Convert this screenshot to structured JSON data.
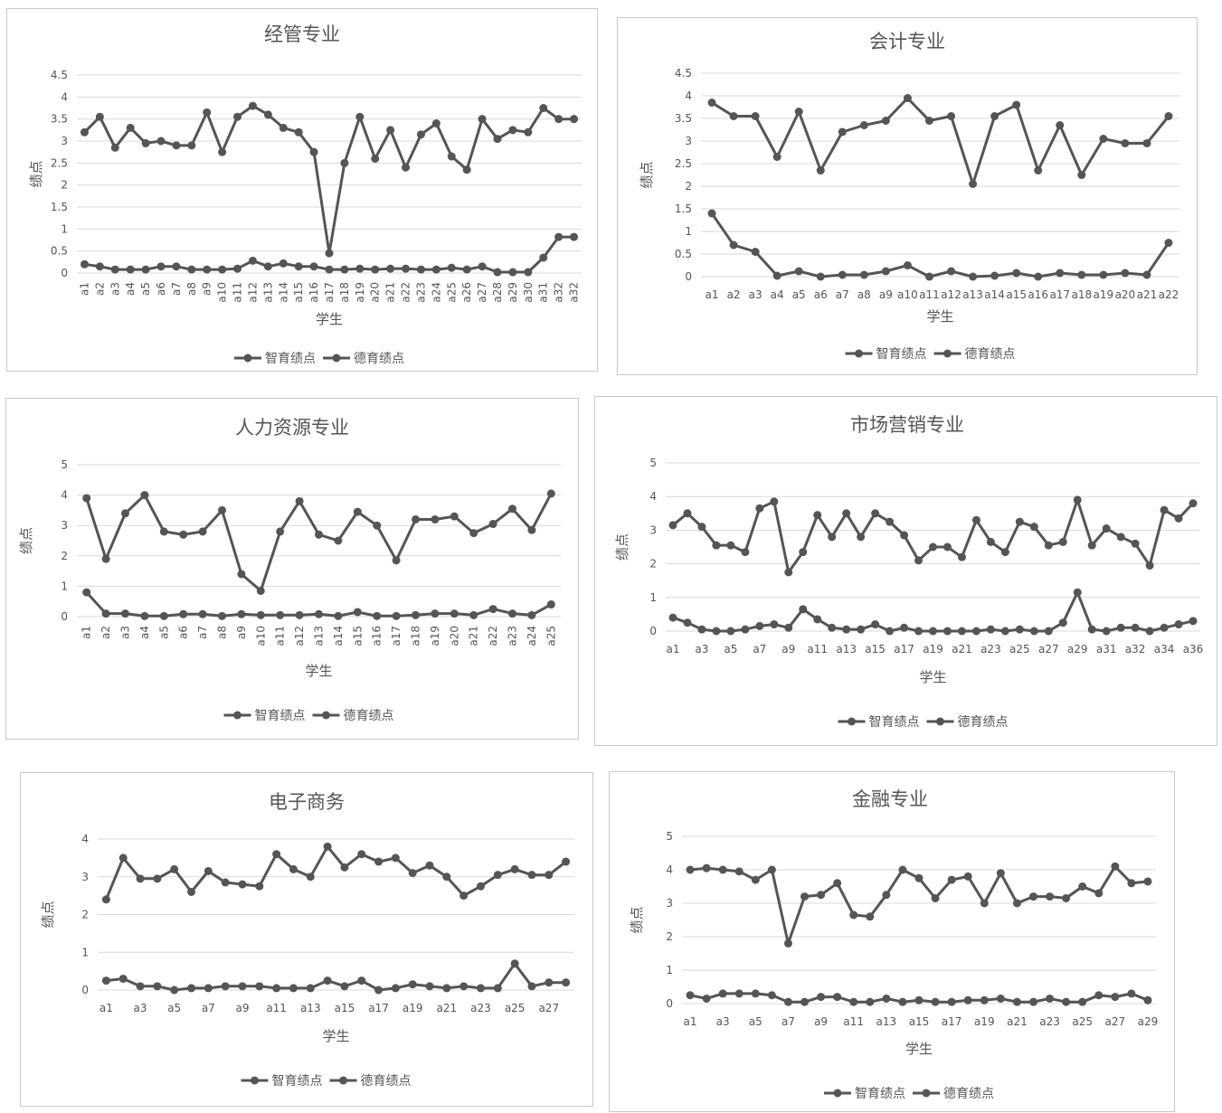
{
  "common": {
    "line_color": "#555555",
    "grid_color": "#d9d9d9"
  },
  "chart_data": [
    {
      "type": "line",
      "title": "经管专业",
      "xlabel": "学生",
      "ylabel": "绩点",
      "ylim": [
        0,
        4.5
      ],
      "yticks": [
        "0",
        "0.5",
        "1",
        "1.5",
        "2",
        "2.5",
        "3",
        "3.5",
        "4",
        "4.5"
      ],
      "categories": [
        "a1",
        "a2",
        "a3",
        "a4",
        "a5",
        "a6",
        "a7",
        "a8",
        "a9",
        "a10",
        "a11",
        "a12",
        "a13",
        "a14",
        "a15",
        "a16",
        "a17",
        "a18",
        "a19",
        "a20",
        "a21",
        "a22",
        "a23",
        "a24",
        "a25",
        "a26",
        "a27",
        "a28",
        "a29",
        "a30",
        "a31",
        "a32",
        "a32"
      ],
      "legend": "bottom",
      "grid": true,
      "series": [
        {
          "name": "智育绩点",
          "values": [
            3.2,
            3.55,
            2.85,
            3.3,
            2.95,
            3.0,
            2.9,
            2.9,
            3.65,
            2.75,
            3.55,
            3.8,
            3.6,
            3.3,
            3.2,
            2.75,
            0.45,
            2.5,
            3.55,
            2.6,
            3.25,
            2.4,
            3.15,
            3.4,
            2.65,
            2.35,
            3.5,
            3.05,
            3.25,
            3.2,
            3.75,
            3.5,
            3.5
          ]
        },
        {
          "name": "德育绩点",
          "values": [
            0.2,
            0.15,
            0.08,
            0.08,
            0.08,
            0.15,
            0.15,
            0.08,
            0.08,
            0.08,
            0.1,
            0.28,
            0.15,
            0.22,
            0.15,
            0.15,
            0.08,
            0.08,
            0.1,
            0.08,
            0.1,
            0.1,
            0.08,
            0.08,
            0.12,
            0.08,
            0.15,
            0.02,
            0.02,
            0.02,
            0.35,
            0.82,
            0.82
          ]
        }
      ]
    },
    {
      "type": "line",
      "title": "会计专业",
      "xlabel": "学生",
      "ylabel": "绩点",
      "ylim": [
        0,
        4.5
      ],
      "yticks": [
        "0",
        "0.5",
        "1",
        "1.5",
        "2",
        "2.5",
        "3",
        "3.5",
        "4",
        "4.5"
      ],
      "categories": [
        "a1",
        "a2",
        "a3",
        "a4",
        "a5",
        "a6",
        "a7",
        "a8",
        "a9",
        "a10",
        "a11",
        "a12",
        "a13",
        "a14",
        "a15",
        "a16",
        "a17",
        "a18",
        "a19",
        "a20",
        "a21",
        "a22"
      ],
      "legend": "bottom",
      "grid": true,
      "series": [
        {
          "name": "智育绩点",
          "values": [
            3.85,
            3.55,
            3.55,
            2.65,
            3.65,
            2.35,
            3.2,
            3.35,
            3.45,
            3.95,
            3.45,
            3.55,
            2.05,
            3.55,
            3.8,
            2.35,
            3.35,
            2.25,
            3.05,
            2.95,
            2.95,
            3.55
          ]
        },
        {
          "name": "德育绩点",
          "values": [
            1.4,
            0.7,
            0.55,
            0.02,
            0.12,
            0.0,
            0.04,
            0.04,
            0.12,
            0.25,
            0.0,
            0.12,
            0.0,
            0.02,
            0.08,
            0.0,
            0.08,
            0.04,
            0.04,
            0.08,
            0.04,
            0.75
          ]
        }
      ]
    },
    {
      "type": "line",
      "title": "人力资源专业",
      "xlabel": "学生",
      "ylabel": "绩点",
      "ylim": [
        0,
        5
      ],
      "yticks": [
        "0",
        "1",
        "2",
        "3",
        "4",
        "5"
      ],
      "categories": [
        "a1",
        "a2",
        "a3",
        "a4",
        "a5",
        "a6",
        "a7",
        "a8",
        "a9",
        "a10",
        "a11",
        "a12",
        "a13",
        "a14",
        "a15",
        "a16",
        "a17",
        "a18",
        "a19",
        "a20",
        "a21",
        "a22",
        "a23",
        "a24",
        "a25"
      ],
      "legend": "bottom",
      "grid": true,
      "series": [
        {
          "name": "智育绩点",
          "values": [
            3.9,
            1.9,
            3.4,
            4.0,
            2.8,
            2.7,
            2.8,
            3.5,
            1.4,
            0.85,
            2.8,
            3.8,
            2.7,
            2.5,
            3.45,
            3.0,
            1.85,
            3.2,
            3.2,
            3.3,
            2.75,
            3.05,
            3.55,
            2.85,
            4.05
          ]
        },
        {
          "name": "德育绩点",
          "values": [
            0.8,
            0.1,
            0.1,
            0.02,
            0.02,
            0.08,
            0.08,
            0.02,
            0.08,
            0.05,
            0.05,
            0.05,
            0.08,
            0.02,
            0.15,
            0.02,
            0.02,
            0.05,
            0.1,
            0.1,
            0.05,
            0.25,
            0.1,
            0.05,
            0.4
          ]
        }
      ]
    },
    {
      "type": "line",
      "title": "市场营销专业",
      "xlabel": "学生",
      "ylabel": "绩点",
      "ylim": [
        0,
        5
      ],
      "yticks": [
        "0",
        "1",
        "2",
        "3",
        "4",
        "5"
      ],
      "categories": [
        "a1",
        "a2",
        "a3",
        "a4",
        "a5",
        "a6",
        "a7",
        "a8",
        "a9",
        "a10",
        "a11",
        "a12",
        "a13",
        "a14",
        "a15",
        "a16",
        "a17",
        "a18",
        "a19",
        "a20",
        "a21",
        "a22",
        "a23",
        "a24",
        "a25",
        "a26",
        "a27",
        "a28",
        "a29",
        "a30",
        "a31",
        "a32",
        "a32",
        "a33",
        "a34",
        "a35",
        "a36"
      ],
      "xtick_labels": [
        "a1",
        "",
        "a3",
        "",
        "a5",
        "",
        "a7",
        "",
        "a9",
        "",
        "a11",
        "",
        "a13",
        "",
        "a15",
        "",
        "a17",
        "",
        "a19",
        "",
        "a21",
        "",
        "a23",
        "",
        "a25",
        "",
        "a27",
        "",
        "a29",
        "",
        "a31",
        "",
        "a32",
        "",
        "a34",
        "",
        "a36"
      ],
      "legend": "bottom",
      "grid": true,
      "series": [
        {
          "name": "智育绩点",
          "values": [
            3.15,
            3.5,
            3.1,
            2.55,
            2.55,
            2.35,
            3.65,
            3.85,
            1.75,
            2.35,
            3.45,
            2.8,
            3.5,
            2.8,
            3.5,
            3.25,
            2.85,
            2.1,
            2.5,
            2.5,
            2.2,
            3.3,
            2.65,
            2.35,
            3.25,
            3.1,
            2.55,
            2.65,
            3.9,
            2.55,
            3.05,
            2.8,
            2.6,
            1.95,
            3.6,
            3.35,
            3.8
          ]
        },
        {
          "name": "德育绩点",
          "values": [
            0.4,
            0.25,
            0.05,
            0.0,
            0.0,
            0.05,
            0.15,
            0.2,
            0.1,
            0.65,
            0.35,
            0.1,
            0.05,
            0.05,
            0.2,
            0.0,
            0.1,
            0.0,
            0.0,
            0.0,
            0.0,
            0.0,
            0.05,
            0.0,
            0.05,
            0.0,
            0.0,
            0.25,
            1.15,
            0.05,
            0.0,
            0.1,
            0.1,
            0.0,
            0.1,
            0.2,
            0.3
          ]
        }
      ]
    },
    {
      "type": "line",
      "title": "电子商务",
      "xlabel": "学生",
      "ylabel": "绩点",
      "ylim": [
        0,
        4
      ],
      "yticks": [
        "0",
        "1",
        "2",
        "3",
        "4"
      ],
      "categories": [
        "a1",
        "a2",
        "a3",
        "a4",
        "a5",
        "a6",
        "a7",
        "a8",
        "a9",
        "a10",
        "a11",
        "a12",
        "a13",
        "a14",
        "a15",
        "a16",
        "a17",
        "a18",
        "a19",
        "a20",
        "a21",
        "a22",
        "a23",
        "a24",
        "a25",
        "a26",
        "a27",
        "a28"
      ],
      "xtick_labels": [
        "a1",
        "",
        "a3",
        "",
        "a5",
        "",
        "a7",
        "",
        "a9",
        "",
        "a11",
        "",
        "a13",
        "",
        "a15",
        "",
        "a17",
        "",
        "a19",
        "",
        "a21",
        "",
        "a23",
        "",
        "a25",
        "",
        "a27",
        ""
      ],
      "legend": "bottom",
      "grid": true,
      "series": [
        {
          "name": "智育绩点",
          "values": [
            2.4,
            3.5,
            2.95,
            2.95,
            3.2,
            2.6,
            3.15,
            2.85,
            2.8,
            2.75,
            3.6,
            3.2,
            3.0,
            3.8,
            3.25,
            3.6,
            3.4,
            3.5,
            3.1,
            3.3,
            3.0,
            2.5,
            2.75,
            3.05,
            3.2,
            3.05,
            3.05,
            3.4
          ]
        },
        {
          "name": "德育绩点",
          "values": [
            0.25,
            0.3,
            0.1,
            0.1,
            0.0,
            0.05,
            0.05,
            0.1,
            0.1,
            0.1,
            0.05,
            0.05,
            0.05,
            0.25,
            0.1,
            0.25,
            0.0,
            0.05,
            0.15,
            0.1,
            0.05,
            0.1,
            0.05,
            0.05,
            0.7,
            0.1,
            0.2,
            0.2
          ]
        }
      ]
    },
    {
      "type": "line",
      "title": "金融专业",
      "xlabel": "学生",
      "ylabel": "绩点",
      "ylim": [
        0,
        5
      ],
      "yticks": [
        "0",
        "1",
        "2",
        "3",
        "4",
        "5"
      ],
      "categories": [
        "a1",
        "a2",
        "a3",
        "a4",
        "a5",
        "a6",
        "a7",
        "a8",
        "a9",
        "a10",
        "a11",
        "a12",
        "a13",
        "a14",
        "a15",
        "a16",
        "a17",
        "a18",
        "a19",
        "a20",
        "a21",
        "a22",
        "a23",
        "a24",
        "a25",
        "a26",
        "a27",
        "a28",
        "a29"
      ],
      "xtick_labels": [
        "a1",
        "",
        "a3",
        "",
        "a5",
        "",
        "a7",
        "",
        "a9",
        "",
        "a11",
        "",
        "a13",
        "",
        "a15",
        "",
        "a17",
        "",
        "a19",
        "",
        "a21",
        "",
        "a23",
        "",
        "a25",
        "",
        "a27",
        "",
        "a29"
      ],
      "legend": "bottom",
      "grid": true,
      "series": [
        {
          "name": "智育绩点",
          "values": [
            4.0,
            4.05,
            4.0,
            3.95,
            3.7,
            4.0,
            1.8,
            3.2,
            3.25,
            3.6,
            2.65,
            2.6,
            3.25,
            4.0,
            3.75,
            3.15,
            3.7,
            3.8,
            3.0,
            3.9,
            3.0,
            3.2,
            3.2,
            3.15,
            3.5,
            3.3,
            4.1,
            3.6,
            3.65
          ]
        },
        {
          "name": "德育绩点",
          "values": [
            0.25,
            0.15,
            0.3,
            0.3,
            0.3,
            0.25,
            0.05,
            0.05,
            0.2,
            0.2,
            0.05,
            0.05,
            0.15,
            0.05,
            0.1,
            0.05,
            0.05,
            0.1,
            0.1,
            0.15,
            0.05,
            0.05,
            0.15,
            0.05,
            0.05,
            0.25,
            0.2,
            0.3,
            0.1
          ]
        }
      ]
    }
  ]
}
